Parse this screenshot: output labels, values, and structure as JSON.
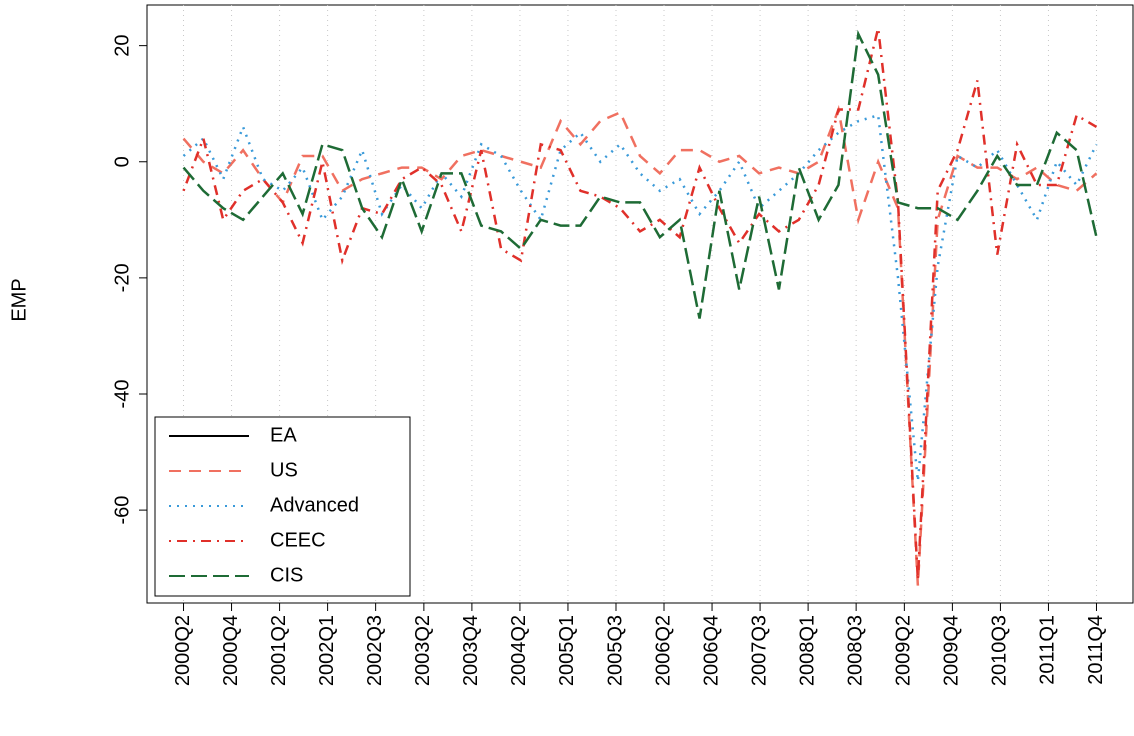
{
  "chart_data": {
    "type": "line",
    "y_label": "EMP",
    "x": [
      1,
      2,
      3,
      4,
      5,
      6,
      7,
      8,
      9,
      10,
      11,
      12,
      13,
      14,
      15,
      16,
      17,
      18,
      19,
      20,
      21,
      22,
      23,
      24,
      25,
      26,
      27,
      28,
      29,
      30,
      31,
      32,
      33,
      34,
      35,
      36,
      37,
      38,
      39,
      40,
      41,
      42,
      43,
      44,
      45,
      46,
      47
    ],
    "xlim": [
      -0.84,
      48.84
    ],
    "xticks": [
      {
        "value": 1,
        "label": "2000Q2"
      },
      {
        "value": 3.42,
        "label": "2000Q4"
      },
      {
        "value": 5.84,
        "label": "2001Q2"
      },
      {
        "value": 8.26,
        "label": "2002Q1"
      },
      {
        "value": 10.68,
        "label": "2002Q3"
      },
      {
        "value": 13.11,
        "label": "2003Q2"
      },
      {
        "value": 15.53,
        "label": "2003Q4"
      },
      {
        "value": 17.95,
        "label": "2004Q2"
      },
      {
        "value": 20.37,
        "label": "2005Q1"
      },
      {
        "value": 22.79,
        "label": "2005Q3"
      },
      {
        "value": 25.21,
        "label": "2006Q2"
      },
      {
        "value": 27.63,
        "label": "2006Q4"
      },
      {
        "value": 30.05,
        "label": "2007Q3"
      },
      {
        "value": 32.47,
        "label": "2008Q1"
      },
      {
        "value": 34.89,
        "label": "2008Q3"
      },
      {
        "value": 37.32,
        "label": "2009Q2"
      },
      {
        "value": 39.74,
        "label": "2009Q4"
      },
      {
        "value": 42.16,
        "label": "2010Q3"
      },
      {
        "value": 44.58,
        "label": "2011Q1"
      },
      {
        "value": 47,
        "label": "2011Q4"
      }
    ],
    "ylim": [
      -76,
      27
    ],
    "yticks": [
      -60,
      -40,
      -20,
      0,
      20
    ],
    "grid": "x",
    "legend_position": "bottom-left",
    "series": [
      {
        "name": "EA",
        "color": "#000000",
        "dash": "none",
        "values": [
          null,
          null,
          null,
          null,
          null,
          null,
          null,
          null,
          null,
          null,
          null,
          null,
          null,
          null,
          null,
          null,
          null,
          null,
          null,
          null,
          null,
          null,
          null,
          null,
          null,
          null,
          null,
          null,
          null,
          null,
          null,
          null,
          null,
          null,
          null,
          null,
          null,
          null,
          null,
          null,
          null,
          null,
          null,
          null,
          null,
          null,
          null
        ]
      },
      {
        "name": "US",
        "color": "#F07060",
        "dash": "12,8",
        "values": [
          4,
          0,
          -2,
          2,
          -3,
          -7,
          1,
          1,
          -5,
          -3,
          -2,
          -1,
          -1,
          -3,
          1,
          2,
          1,
          0,
          -1,
          7,
          3,
          7,
          8.5,
          1,
          -2,
          2,
          2,
          0,
          1,
          -2,
          -1,
          -2,
          0,
          9,
          -10,
          0,
          -8,
          -73,
          -10,
          1,
          -1,
          -1,
          -3,
          -1,
          -4,
          -5,
          -2
        ]
      },
      {
        "name": "Advanced",
        "color": "#3A9AD9",
        "dash": "2,6",
        "values": [
          1,
          4,
          -3,
          6,
          -3,
          -5,
          -1,
          -10,
          -6,
          2,
          -9,
          -4,
          -8,
          -2,
          -6,
          3,
          1,
          -5,
          -10,
          2,
          5,
          0,
          3,
          -2,
          -5,
          -3,
          -9,
          -5,
          0,
          -8,
          -5,
          -2,
          2,
          5,
          7,
          8,
          -20,
          -55,
          -18,
          1,
          -1,
          2,
          -4,
          -10,
          0,
          -4,
          3
        ]
      },
      {
        "name": "CEEC",
        "color": "#E0302A",
        "dash": "2,6,10,6",
        "values": [
          -5,
          4,
          -10,
          -5,
          -3,
          -7,
          -14,
          0,
          -17,
          -8,
          -9,
          -3,
          -1,
          -4,
          -12,
          2,
          -15,
          -17,
          3,
          2,
          -5,
          -6,
          -8,
          -12,
          -10,
          -13,
          -1,
          -8,
          -14,
          -9,
          -12,
          -10,
          -4,
          9,
          9,
          23,
          -7,
          -72,
          -5,
          2,
          14,
          -16,
          3,
          -4,
          -4,
          8,
          6
        ]
      },
      {
        "name": "CIS",
        "color": "#1E6B35",
        "dash": "16,6",
        "values": [
          -1,
          -5,
          -8,
          -10,
          -6,
          -2,
          -9,
          3,
          2,
          -8,
          -13,
          -3,
          -12,
          -2,
          -2,
          -11,
          -12,
          -15,
          -10,
          -11,
          -11,
          -6,
          -7,
          -7,
          -13,
          -10,
          -27,
          -5,
          -22,
          -6,
          -22,
          -1,
          -10,
          -4,
          22,
          15,
          -7,
          -8,
          -8,
          -10,
          -5,
          1,
          -4,
          -4,
          5,
          2,
          -13
        ]
      }
    ]
  }
}
